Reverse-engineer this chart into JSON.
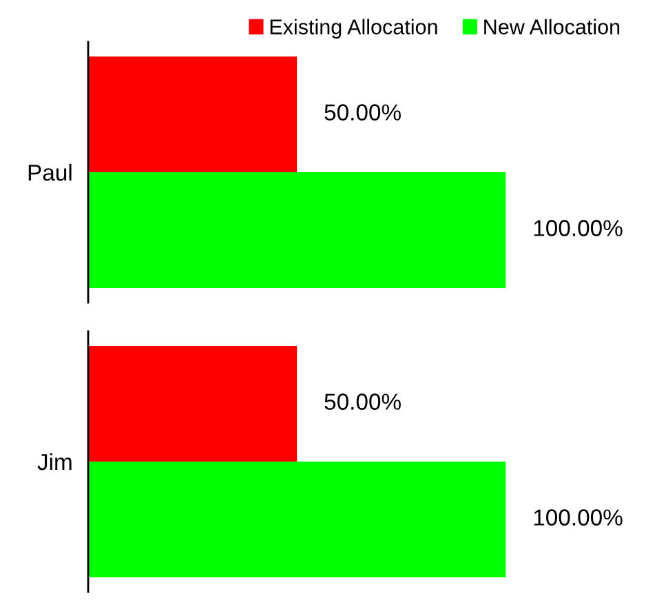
{
  "chart_data": {
    "type": "bar",
    "orientation": "horizontal",
    "categories": [
      "Paul",
      "Jim"
    ],
    "legend": "top right",
    "grid": false,
    "series": [
      {
        "name": "Existing Allocation",
        "color": "#ff0000",
        "values": [
          50,
          50
        ],
        "value_labels": [
          "50.00%",
          "50.00%"
        ]
      },
      {
        "name": "New Allocation",
        "color": "#00ff00",
        "values": [
          100,
          100
        ],
        "value_labels": [
          "100.00%",
          "100.00%"
        ]
      }
    ]
  }
}
